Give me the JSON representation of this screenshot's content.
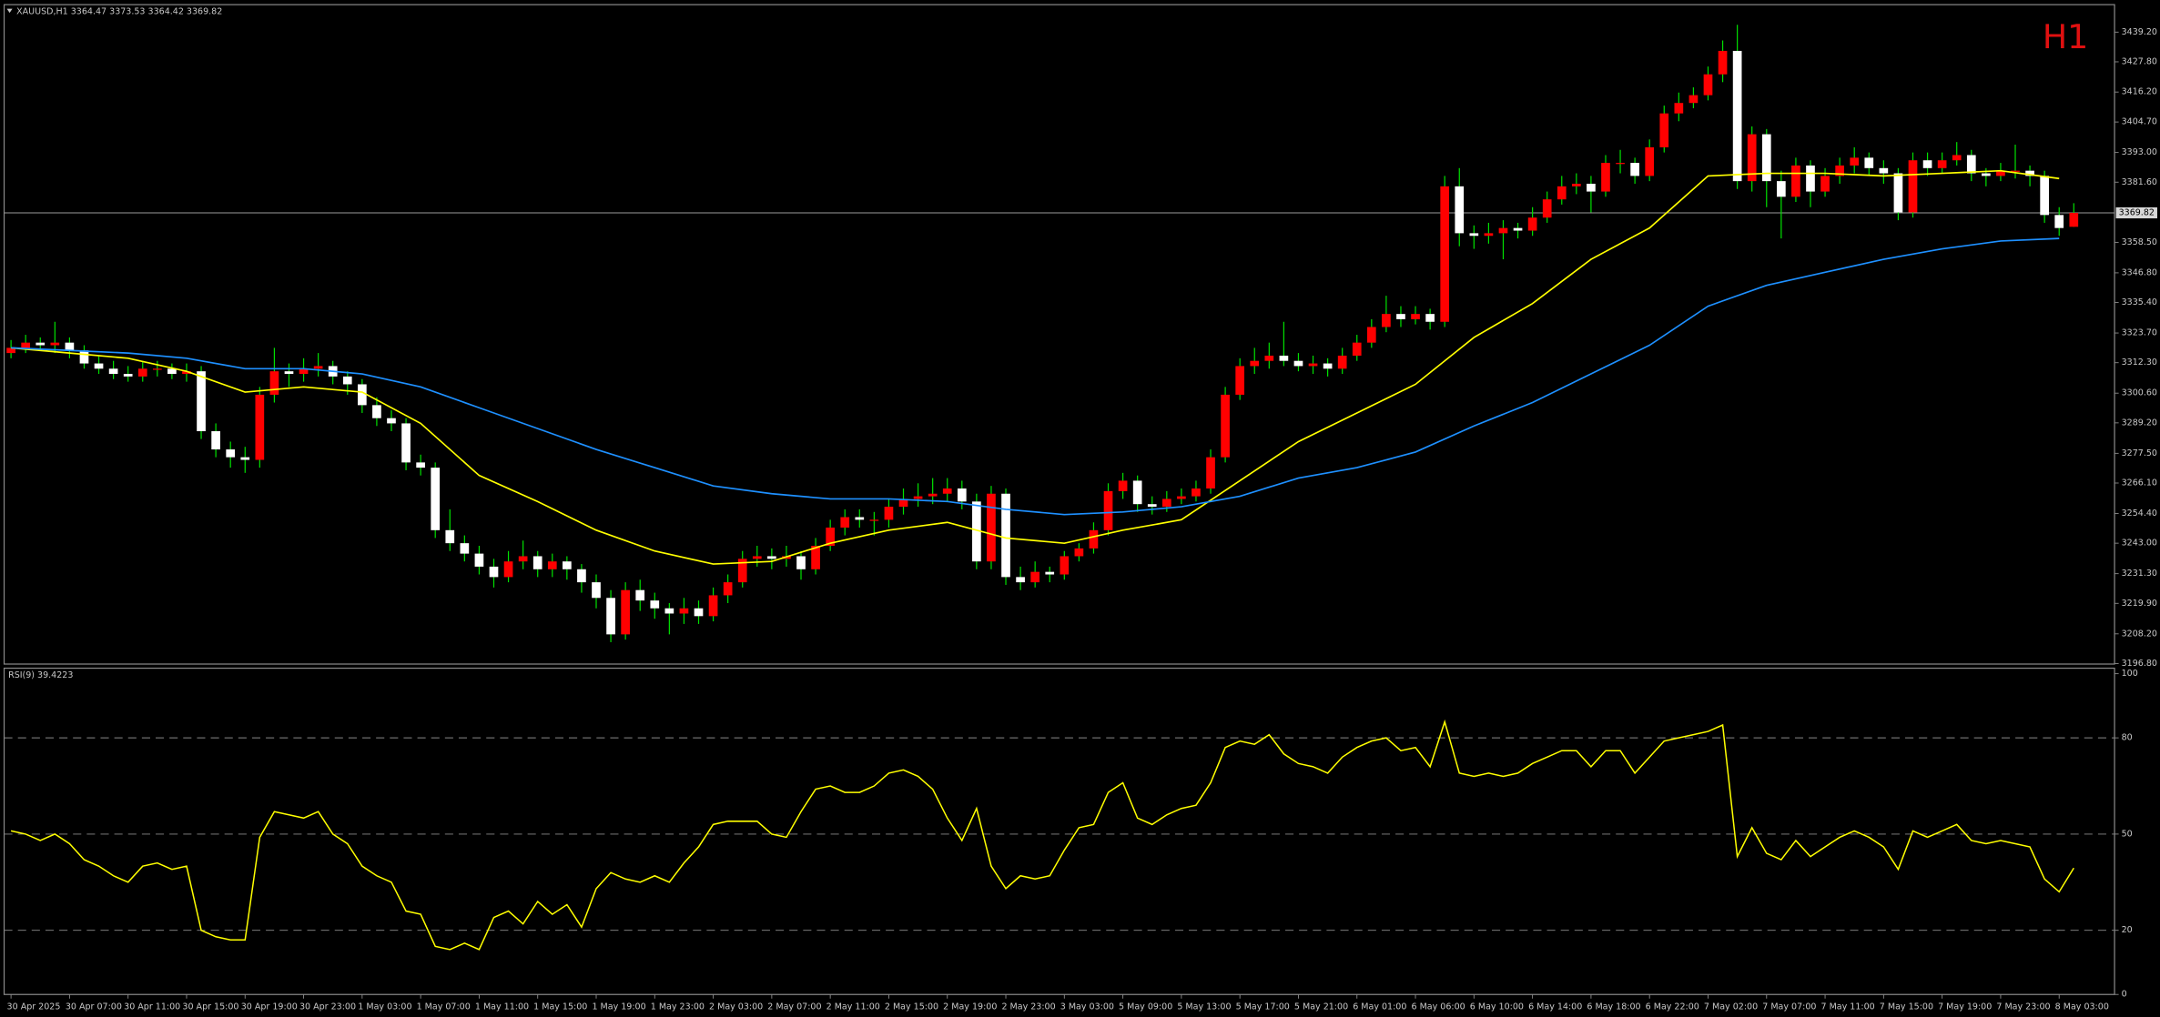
{
  "chart_data": [
    {
      "type": "candlestick",
      "title": "XAUUSD,H1",
      "timeframe": "H1",
      "x_labels": [
        "30 Apr 2025",
        "30 Apr 07:00",
        "30 Apr 11:00",
        "30 Apr 15:00",
        "30 Apr 19:00",
        "30 Apr 23:00",
        "1 May 03:00",
        "1 May 07:00",
        "1 May 11:00",
        "1 May 15:00",
        "1 May 19:00",
        "1 May 23:00",
        "2 May 03:00",
        "2 May 07:00",
        "2 May 11:00",
        "2 May 15:00",
        "2 May 19:00",
        "2 May 23:00",
        "3 May 03:00",
        "5 May 09:00",
        "5 May 13:00",
        "5 May 17:00",
        "5 May 21:00",
        "6 May 01:00",
        "6 May 06:00",
        "6 May 10:00",
        "6 May 14:00",
        "6 May 18:00",
        "6 May 22:00",
        "7 May 02:00",
        "7 May 07:00",
        "7 May 11:00",
        "7 May 15:00",
        "7 May 19:00",
        "7 May 23:00",
        "8 May 03:00"
      ],
      "candles": [
        [
          3316,
          3321,
          3314,
          3318
        ],
        [
          3318,
          3323,
          3316,
          3320
        ],
        [
          3320,
          3322,
          3317,
          3319
        ],
        [
          3319,
          3328,
          3316,
          3320
        ],
        [
          3320,
          3322,
          3314,
          3317
        ],
        [
          3317,
          3319,
          3310,
          3312
        ],
        [
          3312,
          3315,
          3308,
          3310
        ],
        [
          3310,
          3313,
          3306,
          3308
        ],
        [
          3308,
          3311,
          3305,
          3307
        ],
        [
          3307,
          3313,
          3305,
          3310
        ],
        [
          3310,
          3313,
          3307,
          3310
        ],
        [
          3310,
          3312,
          3306,
          3308
        ],
        [
          3308,
          3312,
          3305,
          3309
        ],
        [
          3309,
          3311,
          3283,
          3286
        ],
        [
          3286,
          3289,
          3276,
          3279
        ],
        [
          3279,
          3282,
          3272,
          3276
        ],
        [
          3276,
          3280,
          3270,
          3275
        ],
        [
          3275,
          3303,
          3272,
          3300
        ],
        [
          3300,
          3318,
          3297,
          3309
        ],
        [
          3309,
          3312,
          3303,
          3308
        ],
        [
          3308,
          3314,
          3305,
          3310
        ],
        [
          3310,
          3316,
          3307,
          3311
        ],
        [
          3311,
          3313,
          3304,
          3307
        ],
        [
          3307,
          3309,
          3300,
          3304
        ],
        [
          3304,
          3306,
          3293,
          3296
        ],
        [
          3296,
          3299,
          3288,
          3291
        ],
        [
          3291,
          3294,
          3286,
          3289
        ],
        [
          3289,
          3291,
          3271,
          3274
        ],
        [
          3274,
          3277,
          3269,
          3272
        ],
        [
          3272,
          3274,
          3245,
          3248
        ],
        [
          3248,
          3256,
          3240,
          3243
        ],
        [
          3243,
          3246,
          3236,
          3239
        ],
        [
          3239,
          3242,
          3231,
          3234
        ],
        [
          3234,
          3237,
          3226,
          3230
        ],
        [
          3230,
          3240,
          3228,
          3236
        ],
        [
          3236,
          3244,
          3233,
          3238
        ],
        [
          3238,
          3240,
          3230,
          3233
        ],
        [
          3233,
          3239,
          3230,
          3236
        ],
        [
          3236,
          3238,
          3229,
          3233
        ],
        [
          3233,
          3235,
          3224,
          3228
        ],
        [
          3228,
          3231,
          3218,
          3222
        ],
        [
          3222,
          3225,
          3205,
          3208
        ],
        [
          3208,
          3228,
          3206,
          3225
        ],
        [
          3225,
          3229,
          3217,
          3221
        ],
        [
          3221,
          3224,
          3214,
          3218
        ],
        [
          3218,
          3220,
          3208,
          3216
        ],
        [
          3216,
          3222,
          3212,
          3218
        ],
        [
          3218,
          3221,
          3212,
          3215
        ],
        [
          3215,
          3226,
          3213,
          3223
        ],
        [
          3223,
          3231,
          3220,
          3228
        ],
        [
          3228,
          3240,
          3226,
          3237
        ],
        [
          3237,
          3242,
          3234,
          3238
        ],
        [
          3238,
          3241,
          3233,
          3237
        ],
        [
          3237,
          3242,
          3234,
          3238
        ],
        [
          3238,
          3240,
          3229,
          3233
        ],
        [
          3233,
          3245,
          3231,
          3242
        ],
        [
          3242,
          3252,
          3240,
          3249
        ],
        [
          3249,
          3256,
          3246,
          3253
        ],
        [
          3253,
          3256,
          3249,
          3252
        ],
        [
          3252,
          3255,
          3246,
          3252
        ],
        [
          3252,
          3260,
          3249,
          3257
        ],
        [
          3257,
          3264,
          3254,
          3260
        ],
        [
          3260,
          3266,
          3257,
          3261
        ],
        [
          3261,
          3268,
          3258,
          3262
        ],
        [
          3262,
          3268,
          3259,
          3264
        ],
        [
          3264,
          3267,
          3256,
          3259
        ],
        [
          3259,
          3262,
          3233,
          3236
        ],
        [
          3236,
          3265,
          3233,
          3262
        ],
        [
          3262,
          3264,
          3227,
          3230
        ],
        [
          3230,
          3234,
          3225,
          3228
        ],
        [
          3228,
          3236,
          3226,
          3232
        ],
        [
          3232,
          3234,
          3228,
          3231
        ],
        [
          3231,
          3240,
          3229,
          3238
        ],
        [
          3238,
          3243,
          3236,
          3241
        ],
        [
          3241,
          3251,
          3239,
          3248
        ],
        [
          3248,
          3266,
          3246,
          3263
        ],
        [
          3263,
          3270,
          3260,
          3267
        ],
        [
          3267,
          3269,
          3255,
          3258
        ],
        [
          3258,
          3261,
          3254,
          3257
        ],
        [
          3257,
          3263,
          3255,
          3260
        ],
        [
          3260,
          3264,
          3258,
          3261
        ],
        [
          3261,
          3267,
          3259,
          3264
        ],
        [
          3264,
          3279,
          3262,
          3276
        ],
        [
          3276,
          3303,
          3274,
          3300
        ],
        [
          3300,
          3314,
          3298,
          3311
        ],
        [
          3311,
          3318,
          3308,
          3313
        ],
        [
          3313,
          3320,
          3310,
          3315
        ],
        [
          3315,
          3328,
          3311,
          3313
        ],
        [
          3313,
          3316,
          3309,
          3311
        ],
        [
          3311,
          3315,
          3308,
          3312
        ],
        [
          3312,
          3314,
          3307,
          3310
        ],
        [
          3310,
          3318,
          3308,
          3315
        ],
        [
          3315,
          3323,
          3313,
          3320
        ],
        [
          3320,
          3329,
          3318,
          3326
        ],
        [
          3326,
          3338,
          3324,
          3331
        ],
        [
          3331,
          3334,
          3326,
          3329
        ],
        [
          3329,
          3334,
          3327,
          3331
        ],
        [
          3331,
          3333,
          3325,
          3328
        ],
        [
          3328,
          3384,
          3326,
          3380
        ],
        [
          3380,
          3387,
          3357,
          3362
        ],
        [
          3362,
          3365,
          3356,
          3361
        ],
        [
          3361,
          3366,
          3358,
          3362
        ],
        [
          3362,
          3367,
          3352,
          3364
        ],
        [
          3364,
          3366,
          3360,
          3363
        ],
        [
          3363,
          3372,
          3361,
          3368
        ],
        [
          3368,
          3378,
          3366,
          3375
        ],
        [
          3375,
          3384,
          3373,
          3380
        ],
        [
          3380,
          3385,
          3377,
          3381
        ],
        [
          3381,
          3384,
          3370,
          3378
        ],
        [
          3378,
          3392,
          3376,
          3389
        ],
        [
          3389,
          3394,
          3385,
          3389
        ],
        [
          3389,
          3391,
          3381,
          3384
        ],
        [
          3384,
          3398,
          3382,
          3395
        ],
        [
          3395,
          3411,
          3393,
          3408
        ],
        [
          3408,
          3416,
          3405,
          3412
        ],
        [
          3412,
          3418,
          3410,
          3415
        ],
        [
          3415,
          3426,
          3413,
          3423
        ],
        [
          3423,
          3436,
          3420,
          3432
        ],
        [
          3432,
          3442,
          3379,
          3382
        ],
        [
          3382,
          3403,
          3378,
          3400
        ],
        [
          3400,
          3402,
          3372,
          3382
        ],
        [
          3382,
          3386,
          3360,
          3376
        ],
        [
          3376,
          3391,
          3374,
          3388
        ],
        [
          3388,
          3390,
          3372,
          3378
        ],
        [
          3378,
          3387,
          3376,
          3384
        ],
        [
          3384,
          3391,
          3381,
          3388
        ],
        [
          3388,
          3395,
          3385,
          3391
        ],
        [
          3391,
          3393,
          3384,
          3387
        ],
        [
          3387,
          3390,
          3381,
          3385
        ],
        [
          3385,
          3387,
          3367,
          3370
        ],
        [
          3370,
          3393,
          3368,
          3390
        ],
        [
          3390,
          3393,
          3384,
          3387
        ],
        [
          3387,
          3393,
          3385,
          3390
        ],
        [
          3390,
          3397,
          3388,
          3392
        ],
        [
          3392,
          3394,
          3382,
          3385
        ],
        [
          3385,
          3387,
          3380,
          3384
        ],
        [
          3384,
          3389,
          3382,
          3386
        ],
        [
          3386,
          3396,
          3383,
          3386
        ],
        [
          3386,
          3388,
          3380,
          3384
        ],
        [
          3384,
          3386,
          3366,
          3369
        ],
        [
          3369,
          3372,
          3361,
          3364
        ],
        [
          3364.47,
          3373.53,
          3364.42,
          3369.82
        ]
      ],
      "series": [
        {
          "color": "#ffff00",
          "values": [
            3318,
            3316,
            3314,
            3309,
            3301,
            3303,
            3301,
            3289,
            3269,
            3259,
            3248,
            3240,
            3235,
            3236,
            3243,
            3248,
            3251,
            3245,
            3243,
            3248,
            3252,
            3267,
            3282,
            3293,
            3304,
            3322,
            3335,
            3352,
            3364,
            3384,
            3385,
            3385,
            3384,
            3385,
            3386,
            3383
          ]
        },
        {
          "color": "#1e90ff",
          "values": [
            3318,
            3317,
            3316,
            3314,
            3310,
            3310,
            3308,
            3303,
            3295,
            3287,
            3279,
            3272,
            3265,
            3262,
            3260,
            3260,
            3259,
            3256,
            3254,
            3255,
            3257,
            3261,
            3268,
            3272,
            3278,
            3288,
            3297,
            3308,
            3319,
            3334,
            3342,
            3347,
            3352,
            3356,
            3359,
            3360
          ]
        }
      ],
      "current_price": 3369.82,
      "up_color": "#ff0000",
      "down_color": "#ffffff",
      "wick_color": "#00e000",
      "ylim": [
        3196.6,
        3448.7
      ],
      "yticks": [
        {
          "value": 3439.2,
          "label": "3439.20"
        },
        {
          "value": 3427.8,
          "label": "3427.80"
        },
        {
          "value": 3416.2,
          "label": "3416.20"
        },
        {
          "value": 3404.7,
          "label": "3404.70"
        },
        {
          "value": 3393,
          "label": "3393.00"
        },
        {
          "value": 3381.6,
          "label": "3381.60"
        },
        {
          "value": 3358.5,
          "label": "3358.50"
        },
        {
          "value": 3346.8,
          "label": "3346.80"
        },
        {
          "value": 3335.4,
          "label": "3335.40"
        },
        {
          "value": 3323.7,
          "label": "3323.70"
        },
        {
          "value": 3312.3,
          "label": "3312.30"
        },
        {
          "value": 3300.6,
          "label": "3300.60"
        },
        {
          "value": 3289.2,
          "label": "3289.20"
        },
        {
          "value": 3277.5,
          "label": "3277.50"
        },
        {
          "value": 3266.1,
          "label": "3266.10"
        },
        {
          "value": 3254.4,
          "label": "3254.40"
        },
        {
          "value": 3243,
          "label": "3243.00"
        },
        {
          "value": 3231.3,
          "label": "3231.30"
        },
        {
          "value": 3219.9,
          "label": "3219.90"
        },
        {
          "value": 3208.2,
          "label": "3208.20"
        },
        {
          "value": 3196.8,
          "label": "3196.80"
        }
      ]
    },
    {
      "type": "line",
      "title": "RSI(9)",
      "color": "#ffff00",
      "values": [
        51,
        50,
        48,
        50,
        47,
        42,
        40,
        37,
        35,
        40,
        41,
        39,
        40,
        20,
        18,
        17,
        17,
        49,
        57,
        56,
        55,
        57,
        50,
        47,
        40,
        37,
        35,
        26,
        25,
        15,
        14,
        16,
        14,
        24,
        26,
        22,
        29,
        25,
        28,
        21,
        33,
        38,
        36,
        35,
        37,
        35,
        41,
        46,
        53,
        54,
        54,
        54,
        50,
        49,
        57,
        64,
        65,
        63,
        63,
        65,
        69,
        70,
        68,
        64,
        55,
        48,
        58,
        40,
        33,
        37,
        36,
        37,
        45,
        52,
        53,
        63,
        66,
        55,
        53,
        56,
        58,
        59,
        66,
        77,
        79,
        78,
        81,
        75,
        72,
        71,
        69,
        74,
        77,
        79,
        80,
        76,
        77,
        71,
        85,
        69,
        68,
        69,
        68,
        69,
        72,
        74,
        76,
        76,
        71,
        76,
        76,
        69,
        74,
        79,
        80,
        81,
        82,
        84,
        43,
        52,
        44,
        42,
        48,
        43,
        46,
        49,
        51,
        49,
        46,
        39,
        51,
        49,
        51,
        53,
        48,
        47,
        48,
        47,
        46,
        36,
        32,
        39.4223
      ],
      "ylim": [
        0,
        100
      ],
      "yticks": [
        100,
        80,
        50,
        20,
        0
      ],
      "levels": [
        80,
        50,
        20
      ]
    }
  ]
}
